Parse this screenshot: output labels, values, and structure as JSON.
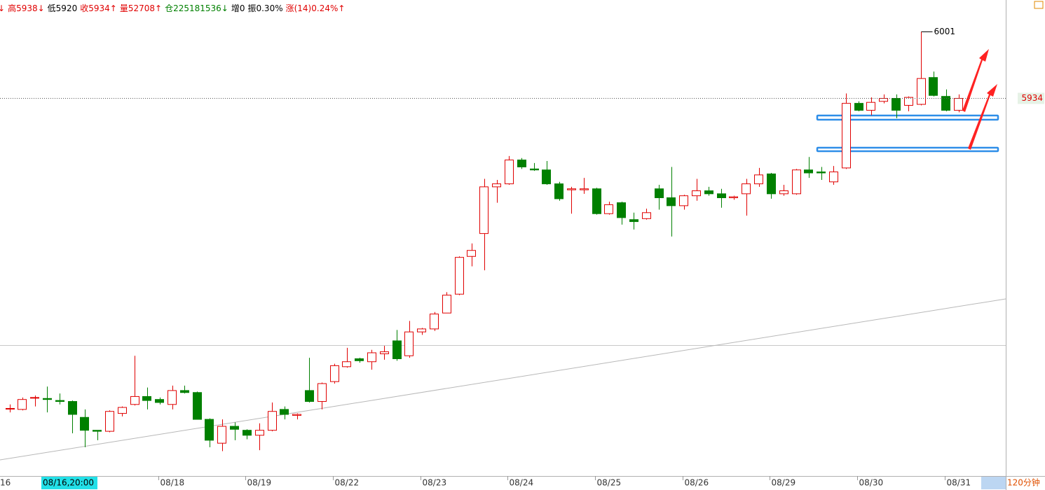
{
  "chart_data": {
    "type": "candlestick",
    "header": [
      {
        "text": "↓",
        "color": "#e00000"
      },
      {
        "text": "高5938↓",
        "color": "#e00000"
      },
      {
        "text": "低5920",
        "color": "#000000"
      },
      {
        "text": "收5934↑",
        "color": "#e00000"
      },
      {
        "text": "量52708↑",
        "color": "#e00000"
      },
      {
        "text": "仓225181536↓",
        "color": "#008000"
      },
      {
        "text": "增0",
        "color": "#000000"
      },
      {
        "text": "振0.30%",
        "color": "#000000"
      },
      {
        "text": "涨(14)0.24%↑",
        "color": "#e00000"
      }
    ],
    "edge_label": "16",
    "cursor_label": "08/16,20:00",
    "period_label": "120分钟",
    "max_label": 6001,
    "last_price": 5934,
    "ylim": [
      5554,
      6033
    ],
    "up_color": "#e00000",
    "down_color": "#008000",
    "categories": [
      null,
      null,
      null,
      null,
      null,
      null,
      null,
      null,
      null,
      null,
      null,
      null,
      "08/18",
      null,
      null,
      null,
      null,
      null,
      null,
      "08/19",
      null,
      null,
      null,
      null,
      null,
      null,
      "08/22",
      null,
      null,
      null,
      null,
      null,
      null,
      "08/23",
      null,
      null,
      null,
      null,
      null,
      null,
      "08/24",
      null,
      null,
      null,
      null,
      null,
      null,
      "08/25",
      null,
      null,
      null,
      null,
      null,
      null,
      "08/26",
      null,
      null,
      null,
      null,
      null,
      null,
      "08/29",
      null,
      null,
      null,
      null,
      null,
      null,
      "08/30",
      null,
      null,
      null,
      null,
      null,
      null,
      "08/31",
      null
    ],
    "open": [
      5622,
      5621,
      5633,
      5632,
      5630,
      5629,
      5613,
      5600,
      5599,
      5617,
      5626,
      5634,
      5631,
      5626,
      5640,
      5638,
      5611,
      5587,
      5604,
      5600,
      5595,
      5600,
      5621,
      5615,
      5640,
      5629,
      5649,
      5664,
      5672,
      5669,
      5677,
      5690,
      5675,
      5699,
      5702,
      5718,
      5737,
      5775,
      5798,
      5845,
      5848,
      5872,
      5863,
      5862,
      5848,
      5842,
      5842,
      5843,
      5818,
      5829,
      5812,
      5813,
      5843,
      5834,
      5826,
      5836,
      5841,
      5838,
      5834,
      5838,
      5848,
      5858,
      5838,
      5838,
      5862,
      5860,
      5850,
      5864,
      5929,
      5922,
      5931,
      5934,
      5927,
      5928,
      5955,
      5936,
      5922
    ],
    "high": [
      5626,
      5633,
      5635,
      5644,
      5637,
      5630,
      5621,
      5600,
      5620,
      5624,
      5675,
      5643,
      5633,
      5645,
      5645,
      5639,
      5612,
      5611,
      5608,
      5601,
      5607,
      5628,
      5624,
      5617,
      5673,
      5648,
      5667,
      5683,
      5673,
      5681,
      5685,
      5701,
      5710,
      5703,
      5719,
      5739,
      5775,
      5788,
      5853,
      5852,
      5876,
      5874,
      5869,
      5871,
      5850,
      5845,
      5854,
      5844,
      5830,
      5830,
      5819,
      5823,
      5847,
      5865,
      5837,
      5853,
      5845,
      5843,
      5836,
      5853,
      5864,
      5859,
      5847,
      5863,
      5875,
      5865,
      5866,
      5939,
      5931,
      5935,
      5938,
      5938,
      5936,
      6001,
      5961,
      5943,
      5938
    ],
    "low": [
      5618,
      5620,
      5624,
      5618,
      5626,
      5597,
      5583,
      5590,
      5598,
      5614,
      5625,
      5621,
      5626,
      5621,
      5637,
      5611,
      5583,
      5579,
      5590,
      5591,
      5580,
      5599,
      5611,
      5611,
      5628,
      5621,
      5647,
      5663,
      5668,
      5661,
      5671,
      5670,
      5673,
      5696,
      5700,
      5718,
      5736,
      5765,
      5761,
      5829,
      5847,
      5863,
      5861,
      5847,
      5831,
      5818,
      5838,
      5817,
      5817,
      5807,
      5802,
      5812,
      5822,
      5795,
      5822,
      5831,
      5836,
      5824,
      5832,
      5816,
      5845,
      5833,
      5836,
      5837,
      5854,
      5852,
      5847,
      5863,
      5921,
      5917,
      5929,
      5914,
      5921,
      5927,
      5936,
      5921,
      5920
    ],
    "close": [
      5622,
      5631,
      5633,
      5631,
      5629,
      5616,
      5600,
      5599,
      5619,
      5623,
      5634,
      5630,
      5628,
      5640,
      5638,
      5611,
      5590,
      5604,
      5601,
      5595,
      5600,
      5619,
      5616,
      5616,
      5629,
      5647,
      5665,
      5669,
      5670,
      5678,
      5679,
      5672,
      5699,
      5702,
      5717,
      5736,
      5774,
      5781,
      5845,
      5848,
      5872,
      5865,
      5862,
      5848,
      5833,
      5843,
      5843,
      5818,
      5827,
      5814,
      5810,
      5819,
      5834,
      5826,
      5836,
      5841,
      5838,
      5834,
      5835,
      5848,
      5857,
      5838,
      5841,
      5862,
      5859,
      5859,
      5860,
      5929,
      5922,
      5930,
      5934,
      5922,
      5935,
      5954,
      5937,
      5922,
      5934
    ]
  }
}
